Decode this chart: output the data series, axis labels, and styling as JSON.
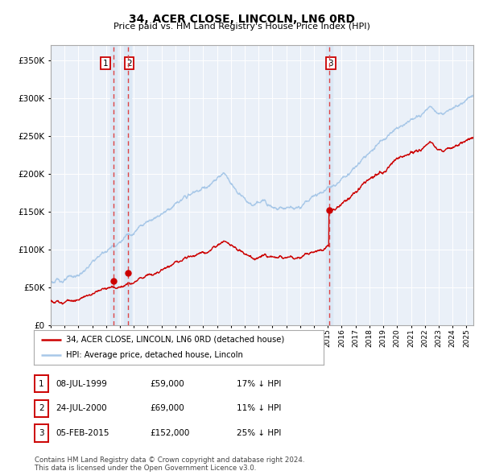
{
  "title": "34, ACER CLOSE, LINCOLN, LN6 0RD",
  "subtitle": "Price paid vs. HM Land Registry's House Price Index (HPI)",
  "legend_line1": "34, ACER CLOSE, LINCOLN, LN6 0RD (detached house)",
  "legend_line2": "HPI: Average price, detached house, Lincoln",
  "table_rows": [
    {
      "num": "1",
      "date": "08-JUL-1999",
      "price": "£59,000",
      "hpi": "17% ↓ HPI"
    },
    {
      "num": "2",
      "date": "24-JUL-2000",
      "price": "£69,000",
      "hpi": "11% ↓ HPI"
    },
    {
      "num": "3",
      "date": "05-FEB-2015",
      "price": "£152,000",
      "hpi": "25% ↓ HPI"
    }
  ],
  "footer": "Contains HM Land Registry data © Crown copyright and database right 2024.\nThis data is licensed under the Open Government Licence v3.0.",
  "sale1_date_num": 1999.52,
  "sale1_price": 59000,
  "sale2_date_num": 2000.56,
  "sale2_price": 69000,
  "sale3_date_num": 2015.09,
  "sale3_price": 152000,
  "hpi_color": "#a8c8e8",
  "price_color": "#cc0000",
  "marker_color": "#cc0000",
  "vline_color": "#dd4444",
  "vband_color": "#dce8f5",
  "plot_bg_color": "#eaf0f8",
  "ylim_max": 370000,
  "ylim_min": 0,
  "xlim_min": 1995.0,
  "xlim_max": 2025.5
}
